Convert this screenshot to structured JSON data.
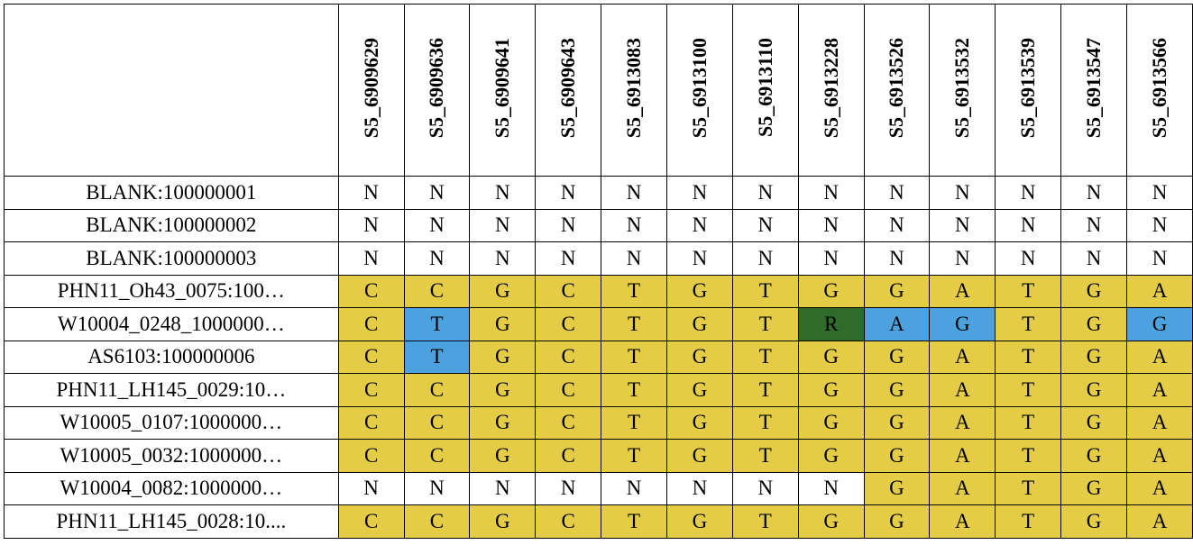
{
  "colors": {
    "y": "#e4cc46",
    "b": "#4ba2df",
    "g": "#2f6b2b",
    "w": "#ffffff"
  },
  "columns": [
    "S5_6909629",
    "S5_6909636",
    "S5_6909641",
    "S5_6909643",
    "S5_6913083",
    "S5_6913100",
    "S5_6913110",
    "S5_6913228",
    "S5_6913526",
    "S5_6913532",
    "S5_6913539",
    "S5_6913547",
    "S5_6913566"
  ],
  "rows": [
    {
      "label": "BLANK:100000001",
      "values": [
        "N",
        "N",
        "N",
        "N",
        "N",
        "N",
        "N",
        "N",
        "N",
        "N",
        "N",
        "N",
        "N"
      ],
      "colors": [
        "w",
        "w",
        "w",
        "w",
        "w",
        "w",
        "w",
        "w",
        "w",
        "w",
        "w",
        "w",
        "w"
      ]
    },
    {
      "label": "BLANK:100000002",
      "values": [
        "N",
        "N",
        "N",
        "N",
        "N",
        "N",
        "N",
        "N",
        "N",
        "N",
        "N",
        "N",
        "N"
      ],
      "colors": [
        "w",
        "w",
        "w",
        "w",
        "w",
        "w",
        "w",
        "w",
        "w",
        "w",
        "w",
        "w",
        "w"
      ]
    },
    {
      "label": "BLANK:100000003",
      "values": [
        "N",
        "N",
        "N",
        "N",
        "N",
        "N",
        "N",
        "N",
        "N",
        "N",
        "N",
        "N",
        "N"
      ],
      "colors": [
        "w",
        "w",
        "w",
        "w",
        "w",
        "w",
        "w",
        "w",
        "w",
        "w",
        "w",
        "w",
        "w"
      ]
    },
    {
      "label": "PHN11_Oh43_0075:100…",
      "values": [
        "C",
        "C",
        "G",
        "C",
        "T",
        "G",
        "T",
        "G",
        "G",
        "A",
        "T",
        "G",
        "A"
      ],
      "colors": [
        "y",
        "y",
        "y",
        "y",
        "y",
        "y",
        "y",
        "y",
        "y",
        "y",
        "y",
        "y",
        "y"
      ]
    },
    {
      "label": "W10004_0248_1000000…",
      "values": [
        "C",
        "T",
        "G",
        "C",
        "T",
        "G",
        "T",
        "R",
        "A",
        "G",
        "T",
        "G",
        "G"
      ],
      "colors": [
        "y",
        "b",
        "y",
        "y",
        "y",
        "y",
        "y",
        "g",
        "b",
        "b",
        "y",
        "y",
        "b"
      ]
    },
    {
      "label": "AS6103:100000006",
      "values": [
        "C",
        "T",
        "G",
        "C",
        "T",
        "G",
        "T",
        "G",
        "G",
        "A",
        "T",
        "G",
        "A"
      ],
      "colors": [
        "y",
        "b",
        "y",
        "y",
        "y",
        "y",
        "y",
        "y",
        "y",
        "y",
        "y",
        "y",
        "y"
      ]
    },
    {
      "label": "PHN11_LH145_0029:10…",
      "values": [
        "C",
        "C",
        "G",
        "C",
        "T",
        "G",
        "T",
        "G",
        "G",
        "A",
        "T",
        "G",
        "A"
      ],
      "colors": [
        "y",
        "y",
        "y",
        "y",
        "y",
        "y",
        "y",
        "y",
        "y",
        "y",
        "y",
        "y",
        "y"
      ]
    },
    {
      "label": "W10005_0107:1000000…",
      "values": [
        "C",
        "C",
        "G",
        "C",
        "T",
        "G",
        "T",
        "G",
        "G",
        "A",
        "T",
        "G",
        "A"
      ],
      "colors": [
        "y",
        "y",
        "y",
        "y",
        "y",
        "y",
        "y",
        "y",
        "y",
        "y",
        "y",
        "y",
        "y"
      ]
    },
    {
      "label": "W10005_0032:1000000…",
      "values": [
        "C",
        "C",
        "G",
        "C",
        "T",
        "G",
        "T",
        "G",
        "G",
        "A",
        "T",
        "G",
        "A"
      ],
      "colors": [
        "y",
        "y",
        "y",
        "y",
        "y",
        "y",
        "y",
        "y",
        "y",
        "y",
        "y",
        "y",
        "y"
      ]
    },
    {
      "label": "W10004_0082:1000000…",
      "values": [
        "N",
        "N",
        "N",
        "N",
        "N",
        "N",
        "N",
        "N",
        "G",
        "A",
        "T",
        "G",
        "A"
      ],
      "colors": [
        "w",
        "w",
        "w",
        "w",
        "w",
        "w",
        "w",
        "w",
        "y",
        "y",
        "y",
        "y",
        "y"
      ]
    },
    {
      "label": "PHN11_LH145_0028:10....",
      "values": [
        "C",
        "C",
        "G",
        "C",
        "T",
        "G",
        "T",
        "G",
        "G",
        "A",
        "T",
        "G",
        "A"
      ],
      "colors": [
        "y",
        "y",
        "y",
        "y",
        "y",
        "y",
        "y",
        "y",
        "y",
        "y",
        "y",
        "y",
        "y"
      ]
    }
  ]
}
